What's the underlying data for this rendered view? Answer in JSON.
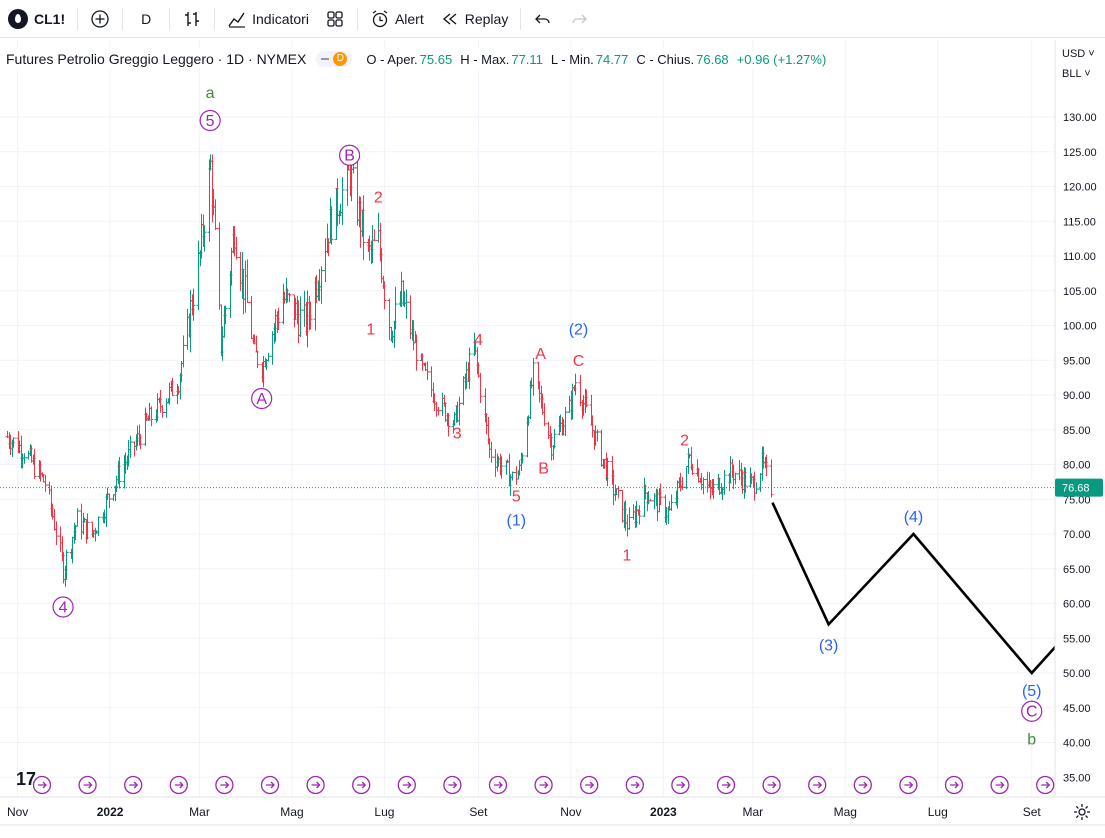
{
  "toolbar": {
    "symbol": "CL1!",
    "interval": "D",
    "indicators_label": "Indicatori",
    "alert_label": "Alert",
    "replay_label": "Replay"
  },
  "legend": {
    "title": "Futures Petrolio Greggio Leggero · 1D · NYMEX",
    "pill_badge": "D",
    "open_key": "O - Aper.",
    "open_val": "75.65",
    "high_key": "H - Max.",
    "high_val": "77.11",
    "low_key": "L - Min.",
    "low_val": "74.77",
    "close_key": "C - Chius.",
    "close_val": "76.68",
    "change": "+0.96 (+1.27%)"
  },
  "price_scale": {
    "currency": "USD",
    "unit": "BLL",
    "last_price": "76.68",
    "ticks": [
      "130.00",
      "125.00",
      "120.00",
      "115.00",
      "110.00",
      "105.00",
      "100.00",
      "95.00",
      "90.00",
      "85.00",
      "80.00",
      "75.00",
      "70.00",
      "65.00",
      "60.00",
      "55.00",
      "50.00",
      "45.00",
      "40.00",
      "35.00"
    ]
  },
  "time_scale": {
    "labels": [
      "Nov",
      "2022",
      "Mar",
      "Mag",
      "Lug",
      "Set",
      "Nov",
      "2023",
      "Mar",
      "Mag",
      "Lug",
      "Set"
    ]
  },
  "colors": {
    "up": "#089981",
    "down": "#f23645",
    "purple": "#9c27b0",
    "blue": "#2962ff",
    "red": "#f23645",
    "green": "#388e3c",
    "projection": "#000000",
    "last_price_bg": "#089981"
  },
  "chart_data": {
    "type": "line",
    "ylim": [
      35,
      133
    ],
    "price_path": [
      [
        "2021-10-25",
        84
      ],
      [
        "2021-11-05",
        82
      ],
      [
        "2021-11-20",
        77
      ],
      [
        "2021-12-01",
        65
      ],
      [
        "2021-12-10",
        72
      ],
      [
        "2021-12-20",
        70
      ],
      [
        "2022-01-05",
        78
      ],
      [
        "2022-01-25",
        86
      ],
      [
        "2022-02-15",
        92
      ],
      [
        "2022-03-01",
        110
      ],
      [
        "2022-03-08",
        123
      ],
      [
        "2022-03-15",
        97
      ],
      [
        "2022-03-24",
        114
      ],
      [
        "2022-04-06",
        96
      ],
      [
        "2022-04-11",
        94
      ],
      [
        "2022-04-25",
        104
      ],
      [
        "2022-05-10",
        100
      ],
      [
        "2022-05-25",
        114
      ],
      [
        "2022-06-08",
        122
      ],
      [
        "2022-06-20",
        110
      ],
      [
        "2022-06-27",
        112
      ],
      [
        "2022-07-05",
        99
      ],
      [
        "2022-07-12",
        104
      ],
      [
        "2022-07-25",
        94
      ],
      [
        "2022-08-05",
        89
      ],
      [
        "2022-08-16",
        86
      ],
      [
        "2022-08-29",
        97
      ],
      [
        "2022-09-08",
        82
      ],
      [
        "2022-09-23",
        78
      ],
      [
        "2022-09-28",
        79
      ],
      [
        "2022-10-07",
        93
      ],
      [
        "2022-10-19",
        83
      ],
      [
        "2022-10-31",
        88
      ],
      [
        "2022-11-04",
        92
      ],
      [
        "2022-11-15",
        85
      ],
      [
        "2022-11-28",
        77
      ],
      [
        "2022-12-09",
        71
      ],
      [
        "2022-12-20",
        76
      ],
      [
        "2023-01-05",
        73
      ],
      [
        "2023-01-18",
        81
      ],
      [
        "2023-02-01",
        76
      ],
      [
        "2023-02-15",
        79
      ],
      [
        "2023-03-01",
        77
      ],
      [
        "2023-03-07",
        80
      ],
      [
        "2023-03-13",
        76.68
      ]
    ],
    "projection": [
      [
        "2023-03-14",
        74.5
      ],
      [
        "2023-04-20",
        57
      ],
      [
        "2023-06-15",
        70
      ],
      [
        "2023-09-01",
        50
      ],
      [
        "2023-09-30",
        57
      ]
    ],
    "wave_labels": [
      {
        "text": "a",
        "date": "2022-03-08",
        "price": 133.5,
        "color": "green",
        "circle": false
      },
      {
        "text": "5",
        "date": "2022-03-08",
        "price": 129.5,
        "color": "purple",
        "circle": true
      },
      {
        "text": "4",
        "date": "2021-12-01",
        "price": 59.5,
        "color": "purple",
        "circle": true
      },
      {
        "text": "A",
        "date": "2022-04-11",
        "price": 89.5,
        "color": "purple",
        "circle": true
      },
      {
        "text": "B",
        "date": "2022-06-08",
        "price": 124.5,
        "color": "purple",
        "circle": true
      },
      {
        "text": "2",
        "date": "2022-06-27",
        "price": 118.5,
        "color": "red",
        "circle": false
      },
      {
        "text": "1",
        "date": "2022-06-22",
        "price": 99.5,
        "color": "red",
        "circle": false
      },
      {
        "text": "4",
        "date": "2022-09-01",
        "price": 98,
        "color": "red",
        "circle": false
      },
      {
        "text": "3",
        "date": "2022-08-18",
        "price": 84.5,
        "color": "red",
        "circle": false
      },
      {
        "text": "5",
        "date": "2022-09-26",
        "price": 75.5,
        "color": "red",
        "circle": false
      },
      {
        "text": "(1)",
        "date": "2022-09-26",
        "price": 72,
        "color": "blue",
        "circle": false
      },
      {
        "text": "A",
        "date": "2022-10-12",
        "price": 96,
        "color": "red",
        "circle": false
      },
      {
        "text": "B",
        "date": "2022-10-14",
        "price": 79.5,
        "color": "red",
        "circle": false
      },
      {
        "text": "(2)",
        "date": "2022-11-06",
        "price": 99.5,
        "color": "blue",
        "circle": false
      },
      {
        "text": "C",
        "date": "2022-11-06",
        "price": 95,
        "color": "red",
        "circle": false
      },
      {
        "text": "1",
        "date": "2022-12-08",
        "price": 67,
        "color": "red",
        "circle": false
      },
      {
        "text": "2",
        "date": "2023-01-15",
        "price": 83.5,
        "color": "red",
        "circle": false
      },
      {
        "text": "(3)",
        "date": "2023-04-20",
        "price": 54,
        "color": "blue",
        "circle": false
      },
      {
        "text": "(4)",
        "date": "2023-06-15",
        "price": 72.5,
        "color": "blue",
        "circle": false
      },
      {
        "text": "(5)",
        "date": "2023-09-01",
        "price": 47.5,
        "color": "blue",
        "circle": false
      },
      {
        "text": "C",
        "date": "2023-09-01",
        "price": 44.5,
        "color": "purple",
        "circle": true
      },
      {
        "text": "b",
        "date": "2023-09-01",
        "price": 40.5,
        "color": "green",
        "circle": false
      }
    ]
  }
}
